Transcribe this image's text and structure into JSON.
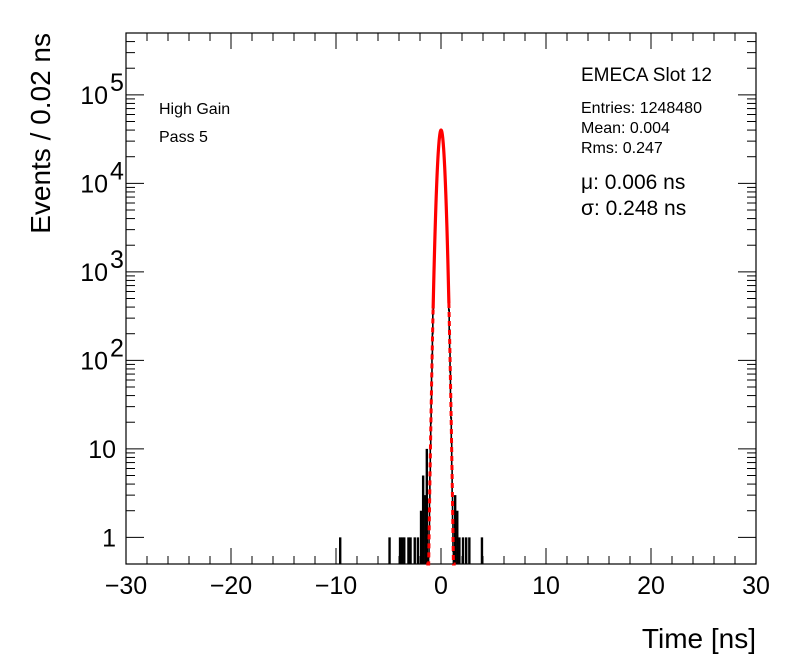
{
  "chart_data": {
    "type": "histogram",
    "title": "",
    "xlabel": "Time [ns]",
    "ylabel": "Events / 0.02 ns",
    "xlim": [
      -30,
      30
    ],
    "ylim": [
      0.5,
      500000
    ],
    "y_scale": "log",
    "grid": false,
    "x_ticks": [
      -30,
      -20,
      -10,
      0,
      10,
      20,
      30
    ],
    "x_tick_labels": [
      "−30",
      "−20",
      "−10",
      "0",
      "10",
      "20",
      "30"
    ],
    "y_ticks": [
      {
        "value": 1,
        "base": "1",
        "exp": ""
      },
      {
        "value": 10,
        "base": "10",
        "exp": ""
      },
      {
        "value": 100,
        "base": "10",
        "exp": "2"
      },
      {
        "value": 1000,
        "base": "10",
        "exp": "3"
      },
      {
        "value": 10000,
        "base": "10",
        "exp": "4"
      },
      {
        "value": 100000,
        "base": "10",
        "exp": "5"
      }
    ],
    "histogram": {
      "color": "#000000",
      "core": {
        "amplitude": 40000,
        "mean": 0.004,
        "sigma": 0.247,
        "range": [
          -1.3,
          1.3
        ]
      },
      "outlier_bins": [
        {
          "x": -9.6,
          "y": 1
        },
        {
          "x": -4.9,
          "y": 1
        },
        {
          "x": -3.9,
          "y": 1
        },
        {
          "x": -3.7,
          "y": 1
        },
        {
          "x": -3.5,
          "y": 1
        },
        {
          "x": -3.1,
          "y": 1
        },
        {
          "x": -2.9,
          "y": 1
        },
        {
          "x": -2.5,
          "y": 1
        },
        {
          "x": -2.2,
          "y": 1
        },
        {
          "x": -1.9,
          "y": 2
        },
        {
          "x": -1.7,
          "y": 5
        },
        {
          "x": -1.5,
          "y": 3
        },
        {
          "x": -1.35,
          "y": 10
        },
        {
          "x": 1.35,
          "y": 3
        },
        {
          "x": 1.55,
          "y": 2
        },
        {
          "x": 1.75,
          "y": 1
        },
        {
          "x": 2.1,
          "y": 1
        },
        {
          "x": 2.4,
          "y": 1
        },
        {
          "x": 2.7,
          "y": 1
        },
        {
          "x": 3.9,
          "y": 1
        }
      ]
    },
    "fit": {
      "type": "gaussian",
      "color": "#ff0000",
      "mean": 0.006,
      "sigma": 0.248,
      "amplitude": 40000,
      "solid_range": [
        -0.75,
        0.75
      ],
      "dashed_range": [
        -1.4,
        1.4
      ]
    }
  },
  "annotations": {
    "top_left": [
      "High Gain",
      "Pass 5"
    ],
    "stats_title": "EMECA Slot 12",
    "stats": [
      "Entries: 1248480",
      "Mean: 0.004",
      "Rms: 0.247"
    ],
    "fit_mu": "μ: 0.006 ns",
    "fit_sigma": "σ: 0.248 ns"
  }
}
